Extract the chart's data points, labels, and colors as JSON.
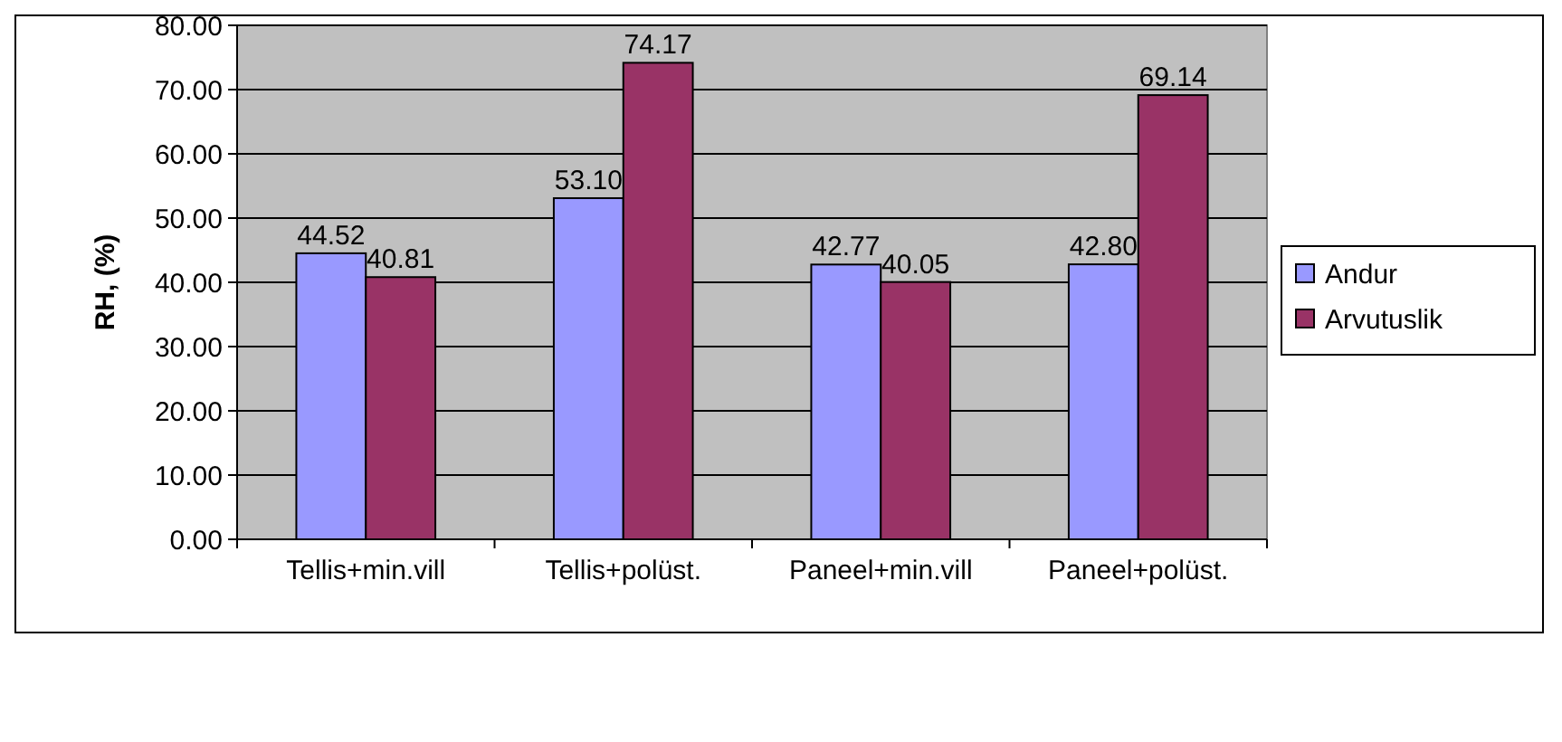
{
  "chart_data": {
    "type": "bar",
    "ylabel": "RH, (%)",
    "categories": [
      "Tellis+min.vill",
      "Tellis+polüst.",
      "Paneel+min.vill",
      "Paneel+polüst."
    ],
    "series": [
      {
        "name": "Andur",
        "color": "#9999ff",
        "values": [
          44.52,
          53.1,
          42.77,
          42.8
        ],
        "value_labels": [
          "44.52",
          "53.10",
          "42.77",
          "42.80"
        ]
      },
      {
        "name": "Arvutuslik",
        "color": "#993366",
        "values": [
          40.81,
          74.17,
          40.05,
          69.14
        ],
        "value_labels": [
          "40.81",
          "74.17",
          "40.05",
          "69.14"
        ]
      }
    ],
    "ylim": [
      0,
      80
    ],
    "yticks": [
      {
        "value": 0,
        "label": "0.00"
      },
      {
        "value": 10,
        "label": "10.00"
      },
      {
        "value": 20,
        "label": "20.00"
      },
      {
        "value": 30,
        "label": "30.00"
      },
      {
        "value": 40,
        "label": "40.00"
      },
      {
        "value": 50,
        "label": "50.00"
      },
      {
        "value": 60,
        "label": "60.00"
      },
      {
        "value": 70,
        "label": "70.00"
      },
      {
        "value": 80,
        "label": "80.00"
      }
    ],
    "grid": "y",
    "legend": "right"
  }
}
